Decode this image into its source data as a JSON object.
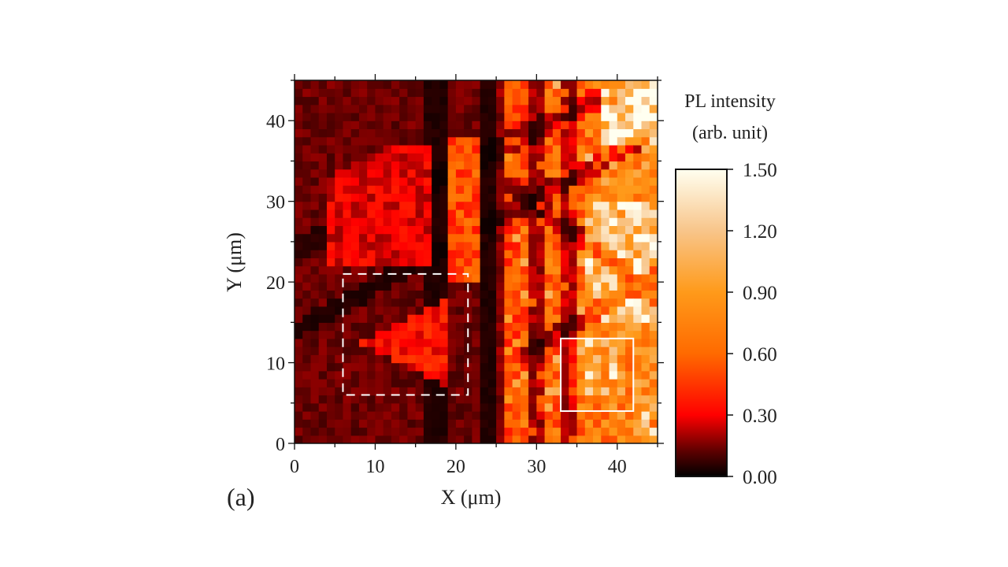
{
  "figure": {
    "panel_label": "(a)"
  },
  "chart_data": {
    "type": "heatmap",
    "title": "",
    "xlabel": "X (μm)",
    "ylabel": "Y (μm)",
    "xlim": [
      0,
      45
    ],
    "ylim": [
      0,
      45
    ],
    "x_ticks": [
      0,
      10,
      20,
      30,
      40
    ],
    "y_ticks": [
      0,
      10,
      20,
      30,
      40
    ],
    "x_minor_step": 5,
    "y_minor_step": 5,
    "grid": false,
    "grid_resolution": 45,
    "colorbar": {
      "title_line1": "PL intensity",
      "title_line2": "(arb. unit)",
      "range": [
        0.0,
        1.5
      ],
      "ticks": [
        "0.00",
        "0.30",
        "0.60",
        "0.90",
        "1.20",
        "1.50"
      ],
      "tick_values": [
        0.0,
        0.3,
        0.6,
        0.9,
        1.2,
        1.5
      ],
      "colormap": [
        {
          "v": 0.0,
          "color": "#000000"
        },
        {
          "v": 0.12,
          "color": "#5a0000"
        },
        {
          "v": 0.3,
          "color": "#ff0000"
        },
        {
          "v": 0.6,
          "color": "#ff6a00"
        },
        {
          "v": 0.9,
          "color": "#ff9a1a"
        },
        {
          "v": 1.2,
          "color": "#f8c58a"
        },
        {
          "v": 1.5,
          "color": "#fffff0"
        }
      ]
    },
    "annotations": [
      {
        "type": "rect",
        "style": "dashed",
        "color": "#ffffff",
        "x": [
          6,
          21.5
        ],
        "y": [
          6,
          21
        ]
      },
      {
        "type": "rect",
        "style": "solid",
        "color": "#ffffff",
        "x": [
          33,
          42
        ],
        "y": [
          4,
          13
        ]
      }
    ],
    "regions_description": [
      {
        "name": "left-dim-region",
        "x": [
          0,
          24
        ],
        "y": [
          0,
          45
        ],
        "typical_intensity": 0.15
      },
      {
        "name": "upper-left-triangle",
        "x": [
          4,
          18
        ],
        "y": [
          22,
          37
        ],
        "typical_intensity": 0.28
      },
      {
        "name": "vertical-bright-strip",
        "x": [
          19,
          23
        ],
        "y": [
          20,
          38
        ],
        "typical_intensity": 0.45
      },
      {
        "name": "dashed-box-triangle",
        "x": [
          8,
          20
        ],
        "y": [
          7,
          18
        ],
        "typical_intensity": 0.32
      },
      {
        "name": "right-bright-region",
        "x": [
          26,
          45
        ],
        "y": [
          0,
          45
        ],
        "typical_intensity": 0.7
      },
      {
        "name": "top-right-hotspot",
        "x": [
          38,
          45
        ],
        "y": [
          38,
          45
        ],
        "typical_intensity": 1.2
      },
      {
        "name": "mid-right-hotspot",
        "x": [
          36,
          45
        ],
        "y": [
          15,
          30
        ],
        "typical_intensity": 1.0
      }
    ]
  }
}
